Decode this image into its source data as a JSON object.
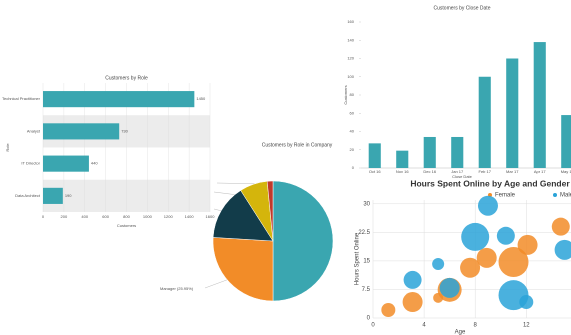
{
  "chart_data": [
    {
      "type": "hbar",
      "title": "Customers by Role",
      "categories": [
        "Technical Practitioner",
        "Analyst",
        "IT Director",
        "Data Architect"
      ],
      "values": [
        1450,
        730,
        440,
        190
      ],
      "color": "#3aa6b0",
      "xlim": [
        0,
        1600
      ],
      "xticks": [
        0,
        200,
        400,
        600,
        800,
        1000,
        1200,
        1400,
        1600
      ],
      "xlabel": "Customers",
      "ylabel": "Role",
      "grid": true
    },
    {
      "type": "bar",
      "title": "Customers by Close Date",
      "categories": [
        "Oct 16",
        "Nov 16",
        "Dec 16",
        "Jan 17",
        "Feb 17",
        "Mar 17",
        "Apr 17",
        "May 17"
      ],
      "values": [
        27,
        19,
        34,
        34,
        100,
        120,
        138,
        58
      ],
      "color": "#3aa6b0",
      "ylim": [
        0,
        160
      ],
      "yticks": [
        0,
        20,
        40,
        60,
        80,
        100,
        120,
        140,
        160
      ],
      "xlabel": "Close Date",
      "ylabel": "Customers",
      "grid": false
    },
    {
      "type": "pie",
      "title": "Customers by Role in Company",
      "categories": [
        null,
        "Manager (25.95%)",
        null,
        null,
        null
      ],
      "values": [
        50,
        25.95,
        15,
        7.5,
        1.55
      ],
      "colors": [
        "#3aa6b0",
        "#f28c28",
        "#123c4a",
        "#d4b50c",
        "#c0392b"
      ]
    },
    {
      "type": "bubble",
      "title": "Hours Spent Online by Age and Gender",
      "xlabel": "Age",
      "ylabel": "Hours Spent Online",
      "xlim": [
        0,
        15.5
      ],
      "xticks": [
        0,
        4,
        8,
        12
      ],
      "ylim": [
        0,
        31
      ],
      "yticks": [
        0,
        7.5,
        15,
        22.5,
        30
      ],
      "grid": true,
      "legend": "top-right",
      "series": [
        {
          "name": "Female",
          "color": "#f28c28",
          "x": [
            1.2,
            3.1,
            5.1,
            6,
            7.6,
            8.9,
            11,
            12.1,
            14.7
          ],
          "values": [
            2.1,
            4.2,
            5.3,
            7.4,
            13.2,
            15.8,
            14.7,
            19.2,
            24
          ],
          "sizes": [
            7,
            10,
            5,
            12,
            10,
            10,
            15,
            10,
            9
          ]
        },
        {
          "name": "Male",
          "color": "#2aa3d8",
          "x": [
            3.1,
            5.1,
            6,
            8,
            9,
            10.4,
            11,
            12,
            15
          ],
          "values": [
            10,
            14.2,
            7.9,
            21.3,
            29.5,
            21.6,
            6,
            4.2,
            17.9
          ],
          "sizes": [
            9,
            6,
            10,
            14,
            10,
            9,
            15,
            7,
            10
          ]
        }
      ]
    }
  ]
}
